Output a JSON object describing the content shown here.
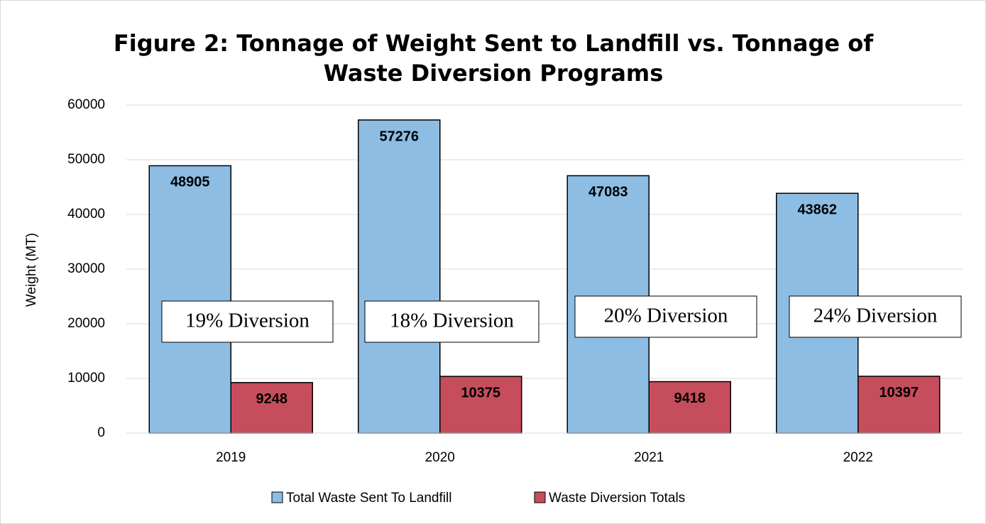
{
  "chart_data": {
    "type": "bar",
    "title": "Figure 2: Tonnage of Weight Sent to Landfill vs. Tonnage of Waste Diversion Programs",
    "y_label": "Weight (MT)",
    "categories": [
      "2019",
      "2020",
      "2021",
      "2022"
    ],
    "series": [
      {
        "name": "Total Waste Sent To Landfill",
        "color": "#8dbde3",
        "values": [
          48905,
          57276,
          47083,
          43862
        ]
      },
      {
        "name": "Waste Diversion Totals",
        "color": "#c64d5c",
        "values": [
          9248,
          10375,
          9418,
          10397
        ]
      }
    ],
    "annotations": [
      "19% Diversion",
      "18% Diversion",
      "20% Diversion",
      "24% Diversion"
    ],
    "ylim": [
      0,
      60000
    ],
    "yticks": [
      0,
      10000,
      20000,
      30000,
      40000,
      50000,
      60000
    ],
    "grid": true,
    "legend": "bottom"
  }
}
